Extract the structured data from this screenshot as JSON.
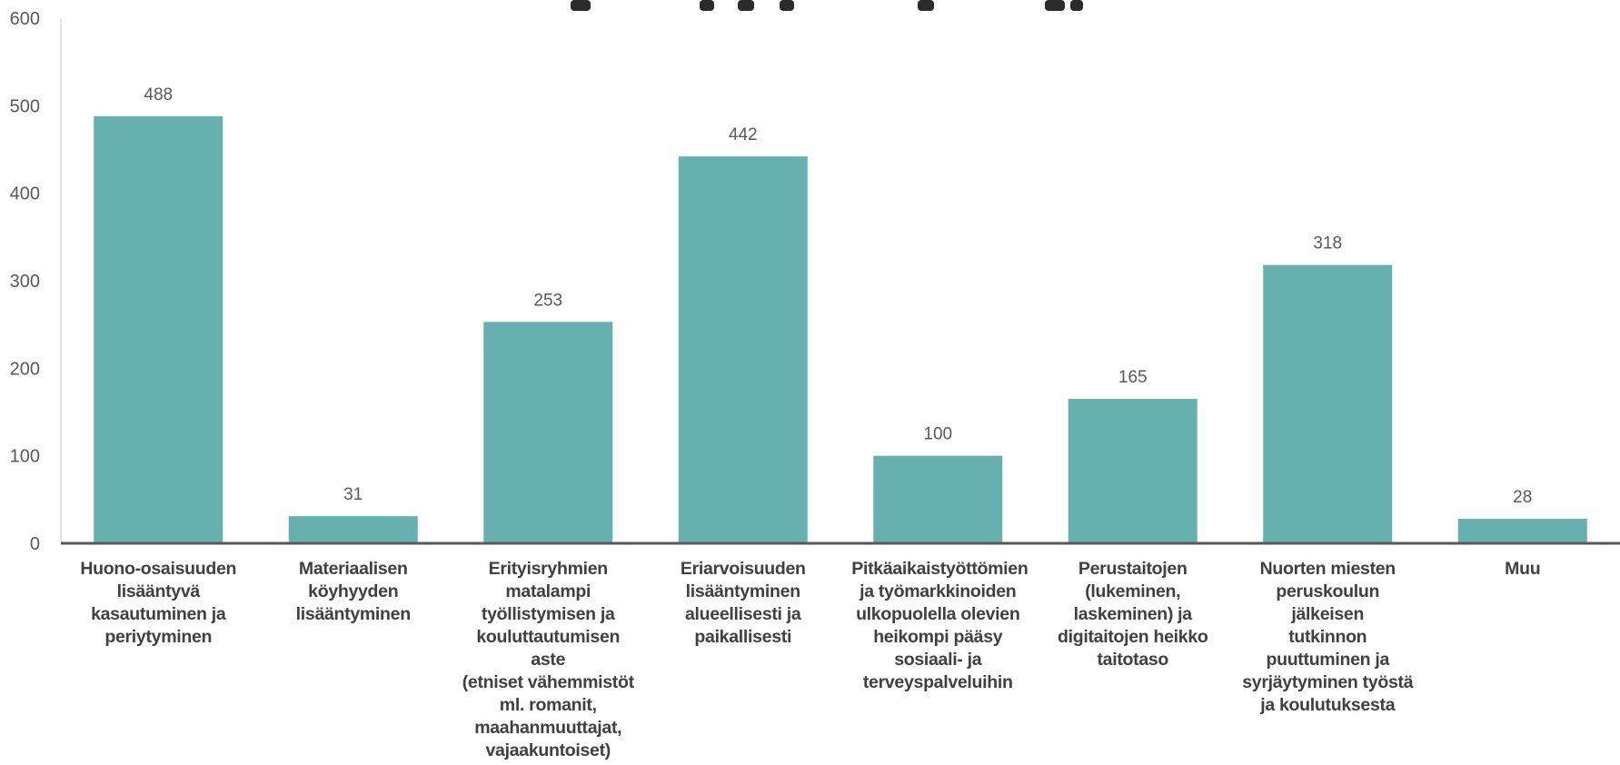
{
  "chart_data": {
    "type": "bar",
    "categories": [
      "Huono-osaisuuden\nlisääntyvä\nkasautuminen ja\nperiytyminen",
      "Materiaalisen\nköyhyyden\nlisääntyminen",
      "Erityisryhmien\nmatalampi\ntyöllistymisen ja\nkouluttautumisen aste\n(etniset vähemmistöt\nml. romanit,\nmaahanmuuttajat,\nvajaakuntoiset)",
      "Eriarvoisuuden\nlisääntyminen\nalueellisesti ja\npaikallisesti",
      "Pitkäaikaistyöttömien\nja työmarkkinoiden\nulkopuolella olevien\nheikompi pääsy\nsosiaali- ja\nterveyspalveluihin",
      "Perustaitojen\n(lukeminen,\nlaskeminen) ja\ndigitaitojen heikko\ntaitotaso",
      "Nuorten miesten\nperuskoulun jälkeisen\ntutkinnon\npuuttuminen ja\nsyrjäytyminen työstä\nja koulutuksesta",
      "Muu"
    ],
    "values": [
      488,
      31,
      253,
      442,
      100,
      165,
      318,
      28
    ],
    "ylim": [
      0,
      600
    ],
    "yticks": [
      "0",
      "100",
      "200",
      "300",
      "400",
      "500",
      "600"
    ],
    "data_labels": [
      "488",
      "31",
      "253",
      "442",
      "100",
      "165",
      "318",
      "28"
    ],
    "bar_color": "#67b0b0",
    "axis_color": "#595959",
    "grid": false,
    "legend": "none"
  }
}
